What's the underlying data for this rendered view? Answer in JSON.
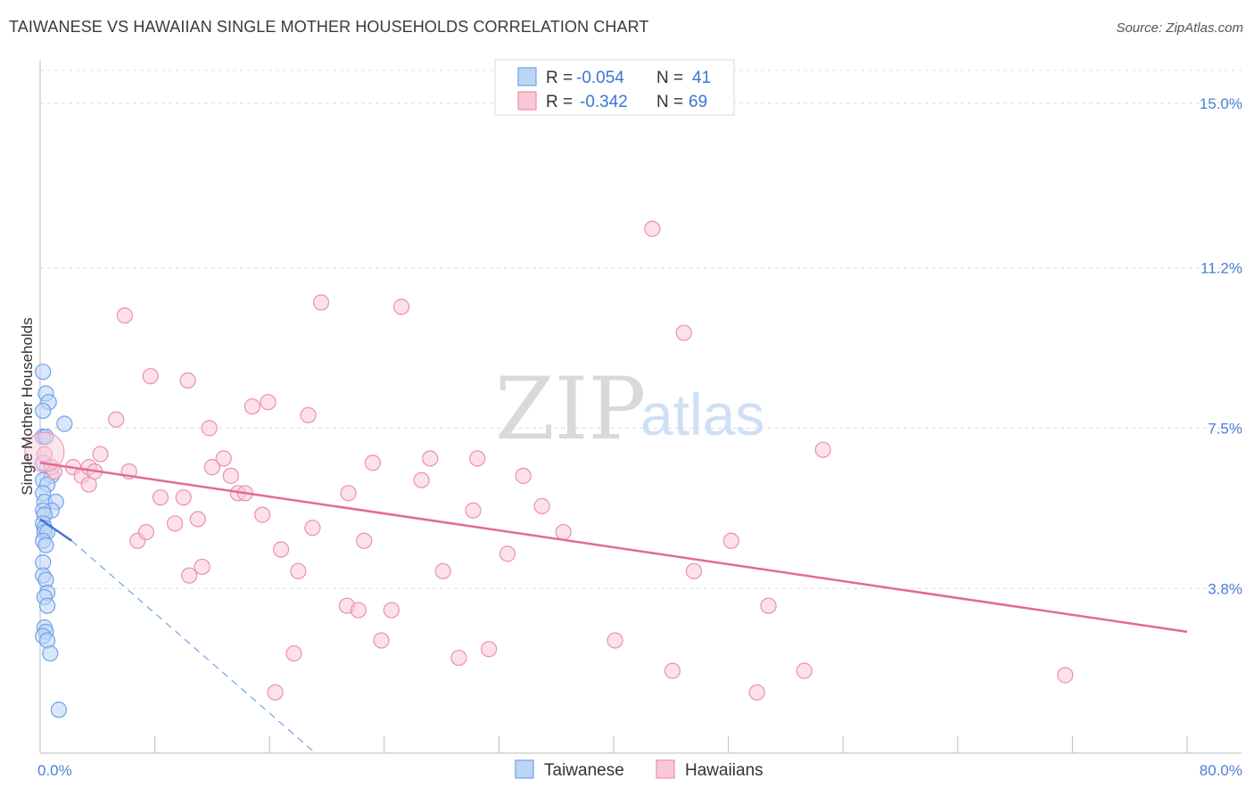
{
  "title": "TAIWANESE VS HAWAIIAN SINGLE MOTHER HOUSEHOLDS CORRELATION CHART",
  "source": "Source: ZipAtlas.com",
  "watermark": {
    "zip": "ZIP",
    "atlas": "atlas"
  },
  "legend": {
    "rows": [
      {
        "r_label": "R =",
        "r_value": "-0.054",
        "n_label": "N =",
        "n_value": "41",
        "color": "#6fa3e8",
        "fill": "#bcd4f6"
      },
      {
        "r_label": "R =",
        "r_value": "-0.342",
        "n_label": "N =",
        "n_value": "69",
        "color": "#ec8fae",
        "fill": "#f9c8d7"
      }
    ]
  },
  "chart_data": {
    "type": "scatter",
    "title": "TAIWANESE VS HAWAIIAN SINGLE MOTHER HOUSEHOLDS CORRELATION CHART",
    "xlabel": "",
    "ylabel": "Single Mother Households",
    "xlim": [
      0,
      80
    ],
    "ylim": [
      0,
      15.9
    ],
    "x_tick_labels": [
      "0.0%",
      "80.0%"
    ],
    "y_ticks": [
      3.8,
      7.5,
      11.2,
      15.0
    ],
    "y_tick_labels": [
      "3.8%",
      "7.5%",
      "11.2%",
      "15.0%"
    ],
    "grid": "horizontal dashed",
    "legend_position": "top-center",
    "series": [
      {
        "name": "Taiwanese",
        "color": "#6fa3e8",
        "fill": "#bcd4f6",
        "trend": {
          "x": [
            0,
            2.2
          ],
          "y": [
            5.4,
            4.9
          ],
          "style": "solid"
        },
        "trend_ext": {
          "x": [
            2.2,
            19.2
          ],
          "y": [
            4.9,
            0.0
          ],
          "style": "dashed"
        },
        "points": [
          [
            0.2,
            8.8
          ],
          [
            0.4,
            8.3
          ],
          [
            0.6,
            8.1
          ],
          [
            0.2,
            7.9
          ],
          [
            1.7,
            7.6
          ],
          [
            0.2,
            7.3
          ],
          [
            0.4,
            7.3
          ],
          [
            0.2,
            6.7
          ],
          [
            0.8,
            6.4
          ],
          [
            0.2,
            6.3
          ],
          [
            0.5,
            6.2
          ],
          [
            0.2,
            6.0
          ],
          [
            0.3,
            5.8
          ],
          [
            1.1,
            5.8
          ],
          [
            0.8,
            5.6
          ],
          [
            0.2,
            5.6
          ],
          [
            0.3,
            5.5
          ],
          [
            0.2,
            5.3
          ],
          [
            0.3,
            5.2
          ],
          [
            0.3,
            5.1
          ],
          [
            0.5,
            5.1
          ],
          [
            0.2,
            4.9
          ],
          [
            0.4,
            4.8
          ],
          [
            0.2,
            4.4
          ],
          [
            0.2,
            4.1
          ],
          [
            0.4,
            4.0
          ],
          [
            0.5,
            3.7
          ],
          [
            0.3,
            3.6
          ],
          [
            0.5,
            3.4
          ],
          [
            0.3,
            2.9
          ],
          [
            0.4,
            2.8
          ],
          [
            0.2,
            2.7
          ],
          [
            0.5,
            2.6
          ],
          [
            0.7,
            2.3
          ],
          [
            1.3,
            1.0
          ]
        ]
      },
      {
        "name": "Hawaiians",
        "color": "#ec8fae",
        "fill": "#f9c8d7",
        "trend": {
          "x": [
            0,
            80
          ],
          "y": [
            6.7,
            2.8
          ],
          "style": "solid"
        },
        "points": [
          [
            0.3,
            6.9
          ],
          [
            0.8,
            6.6
          ],
          [
            1.0,
            6.5
          ],
          [
            2.3,
            6.6
          ],
          [
            2.9,
            6.4
          ],
          [
            3.4,
            6.2
          ],
          [
            3.4,
            6.6
          ],
          [
            4.2,
            6.9
          ],
          [
            3.8,
            6.5
          ],
          [
            6.2,
            6.5
          ],
          [
            5.3,
            7.7
          ],
          [
            5.9,
            10.1
          ],
          [
            7.7,
            8.7
          ],
          [
            10.3,
            8.6
          ],
          [
            11.8,
            7.5
          ],
          [
            6.8,
            4.9
          ],
          [
            7.4,
            5.1
          ],
          [
            8.4,
            5.9
          ],
          [
            9.4,
            5.3
          ],
          [
            10.0,
            5.9
          ],
          [
            10.4,
            4.1
          ],
          [
            11.0,
            5.4
          ],
          [
            11.3,
            4.3
          ],
          [
            12.0,
            6.6
          ],
          [
            12.8,
            6.8
          ],
          [
            13.3,
            6.4
          ],
          [
            13.8,
            6.0
          ],
          [
            14.3,
            6.0
          ],
          [
            14.8,
            8.0
          ],
          [
            15.5,
            5.5
          ],
          [
            15.9,
            8.1
          ],
          [
            16.4,
            1.4
          ],
          [
            16.8,
            4.7
          ],
          [
            17.7,
            2.3
          ],
          [
            18.0,
            4.2
          ],
          [
            18.7,
            7.8
          ],
          [
            19.0,
            5.2
          ],
          [
            19.6,
            10.4
          ],
          [
            21.4,
            3.4
          ],
          [
            22.2,
            3.3
          ],
          [
            21.5,
            6.0
          ],
          [
            22.6,
            4.9
          ],
          [
            23.2,
            6.7
          ],
          [
            23.8,
            2.6
          ],
          [
            24.5,
            3.3
          ],
          [
            25.2,
            10.3
          ],
          [
            26.6,
            6.3
          ],
          [
            27.2,
            6.8
          ],
          [
            28.1,
            4.2
          ],
          [
            29.2,
            2.2
          ],
          [
            30.2,
            5.6
          ],
          [
            30.5,
            6.8
          ],
          [
            31.3,
            2.4
          ],
          [
            32.6,
            4.6
          ],
          [
            33.7,
            6.4
          ],
          [
            35.0,
            5.7
          ],
          [
            36.5,
            5.1
          ],
          [
            40.1,
            2.6
          ],
          [
            42.7,
            12.1
          ],
          [
            44.1,
            1.9
          ],
          [
            44.9,
            9.7
          ],
          [
            45.6,
            4.2
          ],
          [
            48.2,
            4.9
          ],
          [
            50.0,
            1.4
          ],
          [
            50.8,
            3.4
          ],
          [
            53.3,
            1.9
          ],
          [
            54.6,
            7.0
          ],
          [
            71.5,
            1.8
          ]
        ]
      }
    ]
  }
}
